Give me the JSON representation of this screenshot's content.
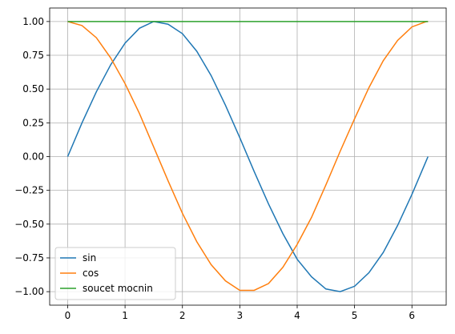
{
  "chart_data": {
    "type": "line",
    "x": [
      0,
      0.25,
      0.5,
      0.75,
      1,
      1.25,
      1.5,
      1.75,
      2,
      2.25,
      2.5,
      2.75,
      3,
      3.25,
      3.5,
      3.75,
      4,
      4.25,
      4.5,
      4.75,
      5,
      5.25,
      5.5,
      5.75,
      6,
      6.25,
      6.28
    ],
    "series": [
      {
        "name": "sin",
        "color": "#1f77b4",
        "values": [
          0,
          0.25,
          0.48,
          0.68,
          0.84,
          0.95,
          1.0,
          0.98,
          0.91,
          0.78,
          0.6,
          0.38,
          0.14,
          -0.11,
          -0.35,
          -0.57,
          -0.76,
          -0.89,
          -0.98,
          -1.0,
          -0.96,
          -0.86,
          -0.71,
          -0.51,
          -0.28,
          -0.03,
          0
        ]
      },
      {
        "name": "cos",
        "color": "#ff7f0e",
        "values": [
          1,
          0.97,
          0.88,
          0.73,
          0.54,
          0.32,
          0.07,
          -0.18,
          -0.42,
          -0.63,
          -0.8,
          -0.92,
          -0.99,
          -0.99,
          -0.94,
          -0.82,
          -0.65,
          -0.45,
          -0.21,
          0.04,
          0.28,
          0.51,
          0.71,
          0.86,
          0.96,
          1.0,
          1.0
        ]
      },
      {
        "name": "soucet mocnin",
        "color": "#2ca02c",
        "values": [
          1,
          1,
          1,
          1,
          1,
          1,
          1,
          1,
          1,
          1,
          1,
          1,
          1,
          1,
          1,
          1,
          1,
          1,
          1,
          1,
          1,
          1,
          1,
          1,
          1,
          1,
          1
        ]
      }
    ],
    "xlim": [
      -0.314,
      6.597
    ],
    "xticks": [
      0,
      1,
      2,
      3,
      4,
      5,
      6
    ],
    "ylim": [
      -1.1,
      1.1
    ],
    "yticks": [
      {
        "value": -1,
        "label": "−1.00"
      },
      {
        "value": -0.75,
        "label": "−0.75"
      },
      {
        "value": -0.5,
        "label": "−0.50"
      },
      {
        "value": -0.25,
        "label": "−0.25"
      },
      {
        "value": 0,
        "label": "0.00"
      },
      {
        "value": 0.25,
        "label": "0.25"
      },
      {
        "value": 0.5,
        "label": "0.50"
      },
      {
        "value": 0.75,
        "label": "0.75"
      },
      {
        "value": 1,
        "label": "1.00"
      }
    ],
    "grid": true,
    "legend": "lower left"
  }
}
